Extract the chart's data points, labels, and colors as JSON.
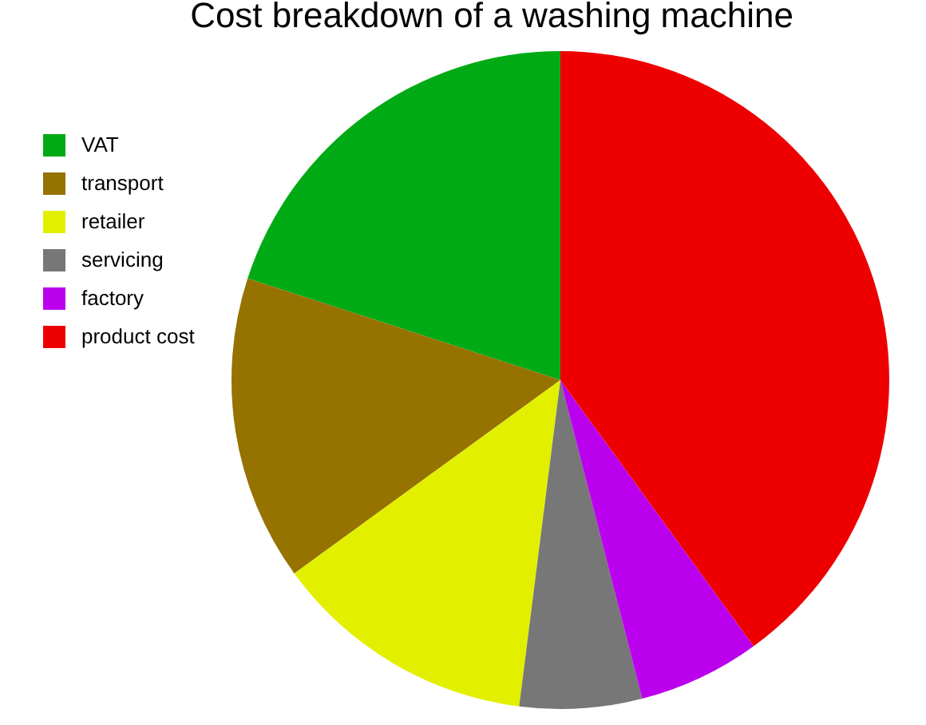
{
  "chart_data": {
    "type": "pie",
    "title": "Cost breakdown of a washing machine",
    "categories": [
      "VAT",
      "transport",
      "retailer",
      "servicing",
      "factory",
      "product cost"
    ],
    "values": [
      20,
      15,
      13,
      6,
      6,
      40
    ],
    "colors": [
      "#00aa15",
      "#967200",
      "#e2f000",
      "#777777",
      "#bb00ee",
      "#ee0000"
    ],
    "legend": "top left"
  }
}
